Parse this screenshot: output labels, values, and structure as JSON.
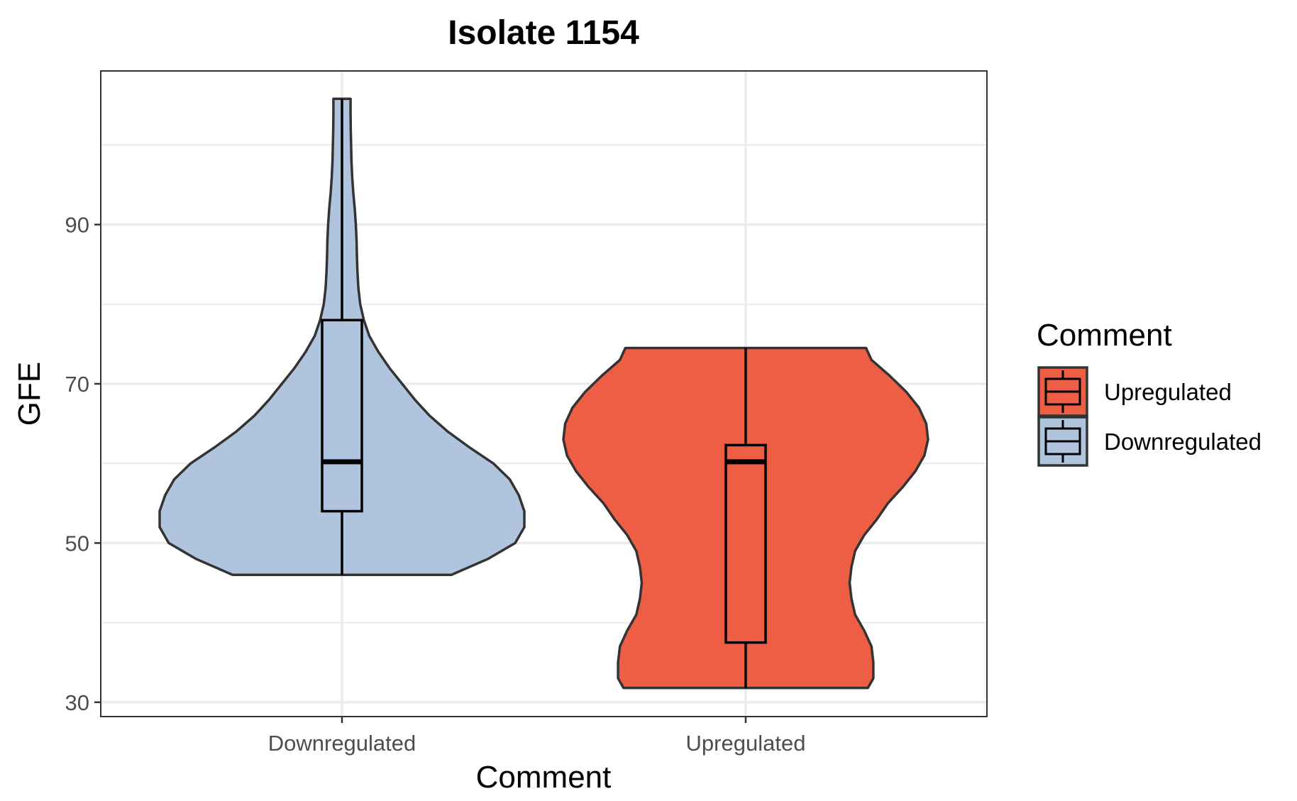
{
  "chart_data": {
    "type": "violin",
    "title": "Isolate 1154",
    "xlabel": "Comment",
    "ylabel": "GFE",
    "categories": [
      "Downregulated",
      "Upregulated"
    ],
    "y_ticks": [
      30,
      50,
      70,
      90
    ],
    "ylim": [
      28.2,
      109.3
    ],
    "grid": true,
    "legend": {
      "title": "Comment",
      "placement": "right",
      "entries": [
        "Upregulated",
        "Downregulated"
      ]
    },
    "series": [
      {
        "name": "Downregulated",
        "color": "#b0c4de",
        "min": 46.0,
        "q1": 54.0,
        "median": 60.2,
        "q3": 78.0,
        "max": 105.8,
        "density_profile": [
          [
            46.0,
            0.6
          ],
          [
            48.0,
            0.8
          ],
          [
            50.0,
            0.95
          ],
          [
            52.0,
            1.0
          ],
          [
            54.0,
            1.0
          ],
          [
            56.0,
            0.97
          ],
          [
            58.0,
            0.92
          ],
          [
            60.0,
            0.83
          ],
          [
            62.0,
            0.7
          ],
          [
            64.0,
            0.58
          ],
          [
            66.0,
            0.48
          ],
          [
            68.0,
            0.4
          ],
          [
            70.0,
            0.33
          ],
          [
            72.0,
            0.26
          ],
          [
            74.0,
            0.2
          ],
          [
            76.0,
            0.15
          ],
          [
            78.0,
            0.12
          ],
          [
            80.0,
            0.1
          ],
          [
            82.0,
            0.09
          ],
          [
            84.0,
            0.085
          ],
          [
            86.0,
            0.082
          ],
          [
            88.0,
            0.08
          ],
          [
            90.0,
            0.076
          ],
          [
            92.0,
            0.07
          ],
          [
            94.0,
            0.062
          ],
          [
            96.0,
            0.056
          ],
          [
            98.0,
            0.052
          ],
          [
            100.0,
            0.05
          ],
          [
            102.0,
            0.048
          ],
          [
            104.0,
            0.047
          ],
          [
            105.8,
            0.047
          ]
        ]
      },
      {
        "name": "Upregulated",
        "color": "#ee5e45",
        "min": 31.8,
        "q1": 37.5,
        "median": 60.2,
        "q3": 62.3,
        "max": 74.5,
        "density_profile": [
          [
            31.8,
            0.67
          ],
          [
            33.0,
            0.7
          ],
          [
            35.0,
            0.7
          ],
          [
            37.0,
            0.69
          ],
          [
            39.0,
            0.65
          ],
          [
            41.0,
            0.6
          ],
          [
            43.0,
            0.58
          ],
          [
            45.0,
            0.57
          ],
          [
            47.0,
            0.58
          ],
          [
            49.0,
            0.6
          ],
          [
            51.0,
            0.65
          ],
          [
            53.0,
            0.72
          ],
          [
            55.0,
            0.78
          ],
          [
            57.0,
            0.86
          ],
          [
            59.0,
            0.93
          ],
          [
            61.0,
            0.98
          ],
          [
            63.0,
            1.0
          ],
          [
            65.0,
            0.99
          ],
          [
            67.0,
            0.95
          ],
          [
            69.0,
            0.88
          ],
          [
            71.0,
            0.79
          ],
          [
            73.0,
            0.69
          ],
          [
            74.5,
            0.66
          ]
        ]
      }
    ]
  }
}
